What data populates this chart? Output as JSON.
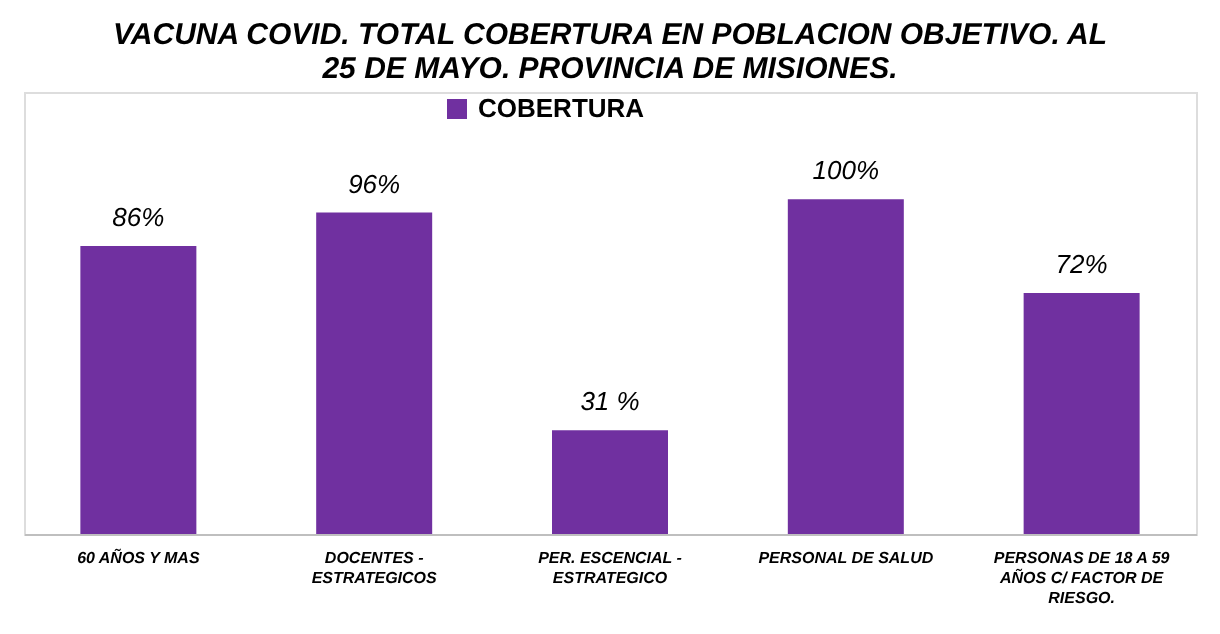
{
  "chart_data": {
    "type": "bar",
    "title": "VACUNA COVID.  TOTAL COBERTURA   EN POBLACION OBJETIVO.  AL  25 DE MAYO.  PROVINCIA DE MISIONES.",
    "categories": [
      "60 AÑOS Y MAS",
      "DOCENTES - ESTRATEGICOS",
      "PER. ESCENCIAL - ESTRATEGICO",
      "PERSONAL DE SALUD",
      "PERSONAS DE 18 A 59 AÑOS C/ FACTOR DE RIESGO."
    ],
    "series": [
      {
        "name": "COBERTURA",
        "color": "#7030a0",
        "values": [
          86,
          96,
          31,
          100,
          72
        ],
        "value_labels": [
          "86%",
          "96%",
          "31 %",
          "100%",
          "72%"
        ]
      }
    ],
    "grid": false,
    "legend": "top"
  }
}
